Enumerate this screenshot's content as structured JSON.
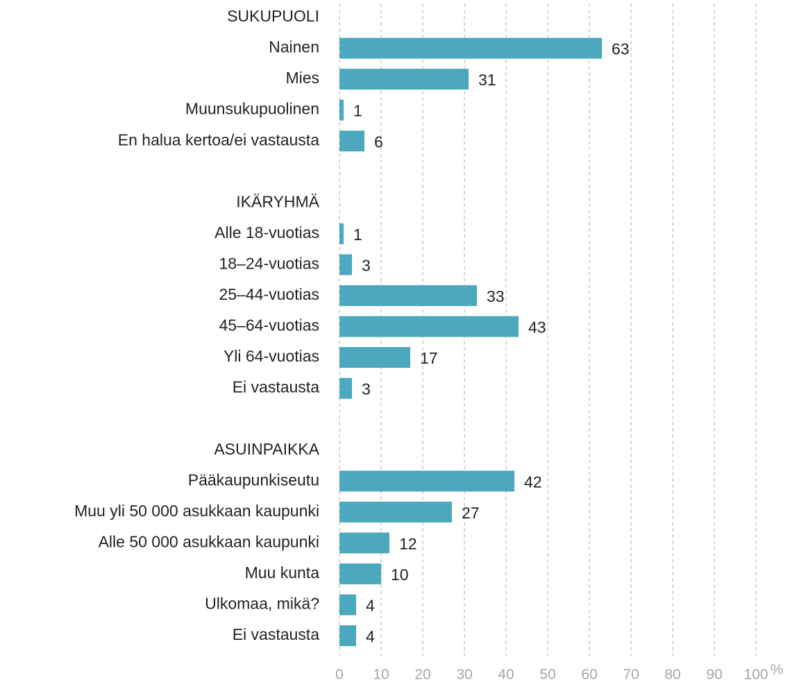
{
  "chart_data": {
    "type": "hbar",
    "categories": [
      "SUKUPUOLI",
      "Nainen",
      "Mies",
      "Muunsukupuolinen",
      "En halua kertoa/ei vastausta",
      null,
      "IKÄRYHMÄ",
      "Alle 18-vuotias",
      "18–24-vuotias",
      "25–44-vuotias",
      "45–64-vuotias",
      "Yli 64-vuotias",
      "Ei vastausta",
      null,
      "ASUINPAIKKA",
      "Pääkaupunkiseutu",
      "Muu yli 50 000 asukkaan kaupunki",
      "Alle 50 000 asukkaan kaupunki",
      "Muu kunta",
      "Ulkomaa, mikä?",
      "Ei vastausta"
    ],
    "values": [
      null,
      63,
      31,
      1,
      6,
      null,
      null,
      1,
      3,
      33,
      43,
      17,
      3,
      null,
      null,
      42,
      27,
      12,
      10,
      4,
      4
    ],
    "color": "#4ba8be",
    "xlim": [
      0,
      100
    ],
    "xticks": [
      0,
      10,
      20,
      30,
      40,
      50,
      60,
      70,
      80,
      90,
      100
    ],
    "x_unit": "%",
    "grid": true
  }
}
